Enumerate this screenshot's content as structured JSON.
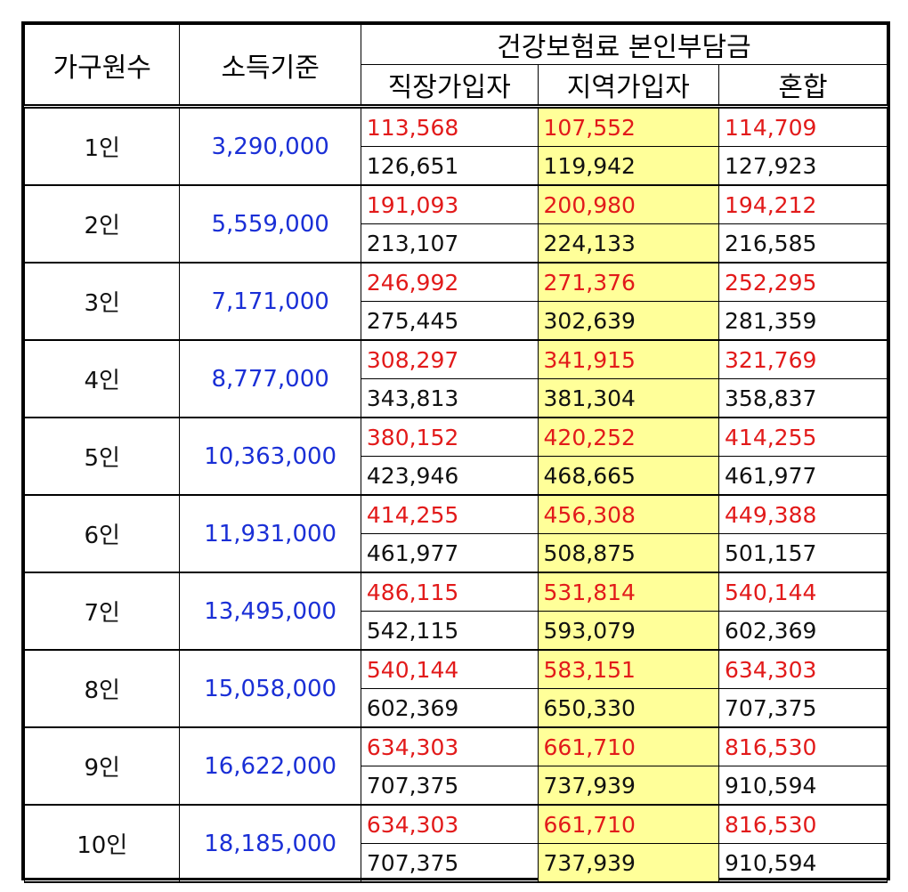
{
  "header": {
    "household": "가구원수",
    "income": "소득기준",
    "premium": "건강보험료 본인부담금",
    "employee": "직장가입자",
    "regional": "지역가입자",
    "mixed": "혼합"
  },
  "rows": [
    {
      "household": "1인",
      "income": "3,290,000",
      "top": [
        "113,568",
        "107,552",
        "114,709"
      ],
      "bottom": [
        "126,651",
        "119,942",
        "127,923"
      ]
    },
    {
      "household": "2인",
      "income": "5,559,000",
      "top": [
        "191,093",
        "200,980",
        "194,212"
      ],
      "bottom": [
        "213,107",
        "224,133",
        "216,585"
      ]
    },
    {
      "household": "3인",
      "income": "7,171,000",
      "top": [
        "246,992",
        "271,376",
        "252,295"
      ],
      "bottom": [
        "275,445",
        "302,639",
        "281,359"
      ]
    },
    {
      "household": "4인",
      "income": "8,777,000",
      "top": [
        "308,297",
        "341,915",
        "321,769"
      ],
      "bottom": [
        "343,813",
        "381,304",
        "358,837"
      ]
    },
    {
      "household": "5인",
      "income": "10,363,000",
      "top": [
        "380,152",
        "420,252",
        "414,255"
      ],
      "bottom": [
        "423,946",
        "468,665",
        "461,977"
      ]
    },
    {
      "household": "6인",
      "income": "11,931,000",
      "top": [
        "414,255",
        "456,308",
        "449,388"
      ],
      "bottom": [
        "461,977",
        "508,875",
        "501,157"
      ]
    },
    {
      "household": "7인",
      "income": "13,495,000",
      "top": [
        "486,115",
        "531,814",
        "540,144"
      ],
      "bottom": [
        "542,115",
        "593,079",
        "602,369"
      ]
    },
    {
      "household": "8인",
      "income": "15,058,000",
      "top": [
        "540,144",
        "583,151",
        "634,303"
      ],
      "bottom": [
        "602,369",
        "650,330",
        "707,375"
      ]
    },
    {
      "household": "9인",
      "income": "16,622,000",
      "top": [
        "634,303",
        "661,710",
        "816,530"
      ],
      "bottom": [
        "707,375",
        "737,939",
        "910,594"
      ]
    },
    {
      "household": "10인",
      "income": "18,185,000",
      "top": [
        "634,303",
        "661,710",
        "816,530"
      ],
      "bottom": [
        "707,375",
        "737,939",
        "910,594"
      ]
    }
  ],
  "colors": {
    "top_values": "#e21a1a",
    "income": "#1a2fd6",
    "regional_highlight": "#ffff99"
  }
}
